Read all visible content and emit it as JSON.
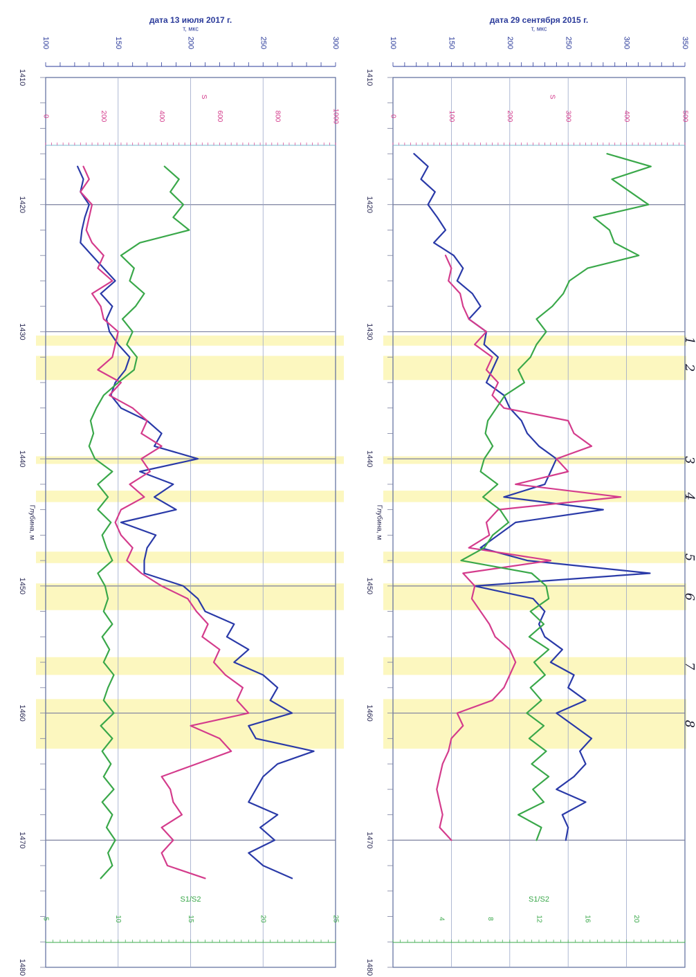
{
  "chart_data": [
    {
      "type": "line",
      "title": "дата 13 июля 2017 г.",
      "depth_label": "Глубина, м",
      "depth_ticks": [
        1410,
        1420,
        1430,
        1440,
        1450,
        1460,
        1470,
        1480
      ],
      "depth_range": [
        1410,
        1480
      ],
      "axes": {
        "t": {
          "label": "т, мкс",
          "range": [
            100,
            300
          ],
          "ticks": [
            100,
            150,
            200,
            250,
            300
          ],
          "color": "#2a3a9a"
        },
        "S": {
          "label": "S",
          "range": [
            0,
            1000
          ],
          "ticks": [
            0,
            200,
            400,
            600,
            800,
            1000
          ],
          "color": "#d43c8c"
        },
        "S1S2": {
          "label": "S1/S2",
          "range": [
            5,
            25
          ],
          "ticks": [
            5,
            10,
            15,
            20,
            25
          ],
          "color": "#3aa84a"
        }
      },
      "series": [
        {
          "axis": "t",
          "color": "#2a3aa8",
          "x": [
            1417,
            1418,
            1419,
            1420,
            1421,
            1422,
            1423,
            1424,
            1425,
            1426,
            1427,
            1428,
            1429,
            1430,
            1431,
            1432,
            1433,
            1434,
            1435,
            1436,
            1437,
            1438,
            1439,
            1440,
            1441,
            1442,
            1443,
            1444,
            1445,
            1446,
            1447,
            1448,
            1449,
            1450,
            1451,
            1452,
            1453,
            1454,
            1455,
            1456,
            1457,
            1458,
            1459,
            1460,
            1461,
            1462,
            1463,
            1464,
            1465,
            1466,
            1467,
            1468,
            1469,
            1470,
            1471,
            1472,
            1473
          ],
          "y": [
            122,
            126,
            124,
            130,
            127,
            125,
            124,
            132,
            140,
            148,
            138,
            146,
            142,
            144,
            150,
            158,
            155,
            148,
            145,
            152,
            170,
            180,
            175,
            205,
            165,
            188,
            175,
            190,
            152,
            176,
            170,
            168,
            168,
            195,
            205,
            210,
            230,
            225,
            240,
            230,
            250,
            260,
            255,
            270,
            240,
            245,
            285,
            260,
            250,
            245,
            240,
            260,
            248,
            258,
            240,
            250,
            270
          ]
        },
        {
          "axis": "S",
          "color": "#d43c8c",
          "x": [
            1417,
            1418,
            1419,
            1420,
            1421,
            1422,
            1423,
            1424,
            1425,
            1426,
            1427,
            1428,
            1429,
            1430,
            1431,
            1432,
            1433,
            1434,
            1435,
            1436,
            1437,
            1438,
            1439,
            1440,
            1441,
            1442,
            1443,
            1444,
            1445,
            1446,
            1447,
            1448,
            1449,
            1450,
            1451,
            1452,
            1453,
            1454,
            1455,
            1456,
            1457,
            1458,
            1459,
            1460,
            1461,
            1462,
            1463,
            1464,
            1465,
            1466,
            1467,
            1468,
            1469,
            1470,
            1471,
            1472,
            1473
          ],
          "y": [
            130,
            150,
            120,
            160,
            150,
            140,
            160,
            200,
            180,
            230,
            160,
            190,
            200,
            250,
            240,
            230,
            180,
            260,
            220,
            300,
            350,
            330,
            400,
            330,
            360,
            290,
            340,
            260,
            240,
            260,
            300,
            280,
            330,
            400,
            490,
            520,
            560,
            540,
            600,
            580,
            620,
            680,
            660,
            700,
            500,
            600,
            640,
            520,
            400,
            430,
            440,
            470,
            400,
            440,
            400,
            420,
            550
          ]
        },
        {
          "axis": "S1S2",
          "color": "#3aa84a",
          "x": [
            1417,
            1418,
            1419,
            1420,
            1421,
            1422,
            1423,
            1424,
            1425,
            1426,
            1427,
            1428,
            1429,
            1430,
            1431,
            1432,
            1433,
            1434,
            1435,
            1436,
            1437,
            1438,
            1439,
            1440,
            1441,
            1442,
            1443,
            1444,
            1445,
            1446,
            1447,
            1448,
            1449,
            1450,
            1451,
            1452,
            1453,
            1454,
            1455,
            1456,
            1457,
            1458,
            1459,
            1460,
            1461,
            1462,
            1463,
            1464,
            1465,
            1466,
            1467,
            1468,
            1469,
            1470,
            1471,
            1472,
            1473
          ],
          "y": [
            13.2,
            14.2,
            13.6,
            14.5,
            13.8,
            14.9,
            11.5,
            10.2,
            11.1,
            10.8,
            11.8,
            11.2,
            10.3,
            11.0,
            10.6,
            11.3,
            11.1,
            10.0,
            9.0,
            8.5,
            8.1,
            8.3,
            8.0,
            8.4,
            9.6,
            8.6,
            9.3,
            8.6,
            9.5,
            8.9,
            9.2,
            9.6,
            8.6,
            9.1,
            9.3,
            9.0,
            9.6,
            8.9,
            9.4,
            9.0,
            9.7,
            9.3,
            9.0,
            9.7,
            8.8,
            9.6,
            8.9,
            9.5,
            9.0,
            9.7,
            8.9,
            9.6,
            9.2,
            9.8,
            9.3,
            9.6,
            8.8
          ]
        }
      ],
      "intervals": [
        [
          1430.3,
          1431.1
        ],
        [
          1431.9,
          1433.8
        ],
        [
          1439.8,
          1440.4
        ],
        [
          1442.5,
          1443.4
        ],
        [
          1447.3,
          1448.2
        ],
        [
          1449.8,
          1451.9
        ],
        [
          1455.6,
          1457.0
        ],
        [
          1458.9,
          1462.8
        ]
      ]
    },
    {
      "type": "line",
      "title": "дата 29 сентября 2015 г.",
      "depth_label": "Глубина, м",
      "depth_ticks": [
        1410,
        1420,
        1430,
        1440,
        1450,
        1460,
        1470,
        1480
      ],
      "depth_range": [
        1410,
        1480
      ],
      "axes": {
        "t": {
          "label": "т, мкс",
          "range": [
            100,
            350
          ],
          "ticks": [
            100,
            150,
            200,
            250,
            300,
            350
          ],
          "color": "#2a3a9a"
        },
        "S": {
          "label": "S",
          "range": [
            0,
            500
          ],
          "ticks": [
            0,
            100,
            200,
            300,
            400,
            500
          ],
          "color": "#d43c8c"
        },
        "S1S2": {
          "label": "S1/S2",
          "range": [
            0,
            24
          ],
          "ticks": [
            4,
            8,
            12,
            16,
            20
          ],
          "color": "#3aa84a"
        }
      },
      "series": [
        {
          "axis": "t",
          "color": "#2a3aa8",
          "x": [
            1416,
            1417,
            1418,
            1419,
            1420,
            1421,
            1422,
            1423,
            1424,
            1425,
            1426,
            1427,
            1428,
            1429,
            1430,
            1431,
            1432,
            1433,
            1434,
            1435,
            1436,
            1437,
            1438,
            1439,
            1440,
            1441,
            1442,
            1443,
            1444,
            1445,
            1446,
            1447,
            1448,
            1449,
            1450,
            1451,
            1452,
            1453,
            1454,
            1455,
            1456,
            1457,
            1458,
            1459,
            1460,
            1461,
            1462,
            1463,
            1464,
            1465,
            1466,
            1467,
            1468,
            1469,
            1470
          ],
          "y": [
            118,
            130,
            124,
            136,
            130,
            138,
            145,
            135,
            152,
            160,
            155,
            168,
            175,
            165,
            180,
            178,
            190,
            185,
            180,
            195,
            200,
            210,
            215,
            225,
            240,
            235,
            230,
            195,
            280,
            205,
            190,
            175,
            215,
            320,
            170,
            220,
            230,
            225,
            230,
            245,
            235,
            255,
            250,
            265,
            240,
            255,
            270,
            260,
            265,
            255,
            240,
            265,
            245,
            250,
            248
          ]
        },
        {
          "axis": "S",
          "color": "#d43c8c",
          "x": [
            1424,
            1425,
            1426,
            1427,
            1428,
            1429,
            1430,
            1431,
            1432,
            1433,
            1434,
            1435,
            1436,
            1437,
            1438,
            1439,
            1440,
            1441,
            1442,
            1443,
            1444,
            1445,
            1446,
            1447,
            1448,
            1449,
            1450,
            1451,
            1452,
            1453,
            1454,
            1455,
            1456,
            1457,
            1458,
            1459,
            1460,
            1461,
            1462,
            1463,
            1464,
            1465,
            1466,
            1467,
            1468,
            1469,
            1470
          ],
          "y": [
            90,
            100,
            95,
            115,
            120,
            130,
            160,
            140,
            170,
            160,
            180,
            170,
            190,
            300,
            310,
            340,
            280,
            300,
            210,
            390,
            180,
            160,
            165,
            130,
            270,
            120,
            140,
            135,
            150,
            165,
            175,
            200,
            210,
            200,
            190,
            170,
            110,
            120,
            100,
            95,
            85,
            80,
            75,
            80,
            85,
            80,
            100
          ]
        },
        {
          "axis": "S1S2",
          "color": "#3aa84a",
          "x": [
            1416,
            1417,
            1418,
            1419,
            1420,
            1421,
            1422,
            1423,
            1424,
            1425,
            1426,
            1427,
            1428,
            1429,
            1430,
            1431,
            1432,
            1433,
            1434,
            1435,
            1436,
            1437,
            1438,
            1439,
            1440,
            1441,
            1442,
            1443,
            1444,
            1445,
            1446,
            1447,
            1448,
            1449,
            1450,
            1451,
            1452,
            1453,
            1454,
            1455,
            1456,
            1457,
            1458,
            1459,
            1460,
            1461,
            1462,
            1463,
            1464,
            1465,
            1466,
            1467,
            1468,
            1469,
            1470
          ],
          "y": [
            17.6,
            21.2,
            18.0,
            19.5,
            21.0,
            16.5,
            17.8,
            18.2,
            20.2,
            16.0,
            14.5,
            14.0,
            13.1,
            11.8,
            12.6,
            11.8,
            11.3,
            10.3,
            10.8,
            9.2,
            8.5,
            7.8,
            7.6,
            8.2,
            7.5,
            7.2,
            8.6,
            7.4,
            8.8,
            9.5,
            8.2,
            7.5,
            5.6,
            11.4,
            12.6,
            12.8,
            11.3,
            12.4,
            11.2,
            12.8,
            11.6,
            12.5,
            11.3,
            12.2,
            11.0,
            12.4,
            11.2,
            12.6,
            11.4,
            12.8,
            11.5,
            12.4,
            10.3,
            12.2,
            11.8
          ]
        }
      ],
      "intervals": [
        [
          1430.3,
          1431.1
        ],
        [
          1431.9,
          1433.8
        ],
        [
          1439.8,
          1440.4
        ],
        [
          1442.5,
          1443.4
        ],
        [
          1447.3,
          1448.2
        ],
        [
          1449.8,
          1451.9
        ],
        [
          1455.6,
          1457.0
        ],
        [
          1458.9,
          1462.8
        ]
      ]
    }
  ],
  "markers": [
    "1",
    "2",
    "3",
    "4",
    "5",
    "6",
    "7",
    "8"
  ]
}
